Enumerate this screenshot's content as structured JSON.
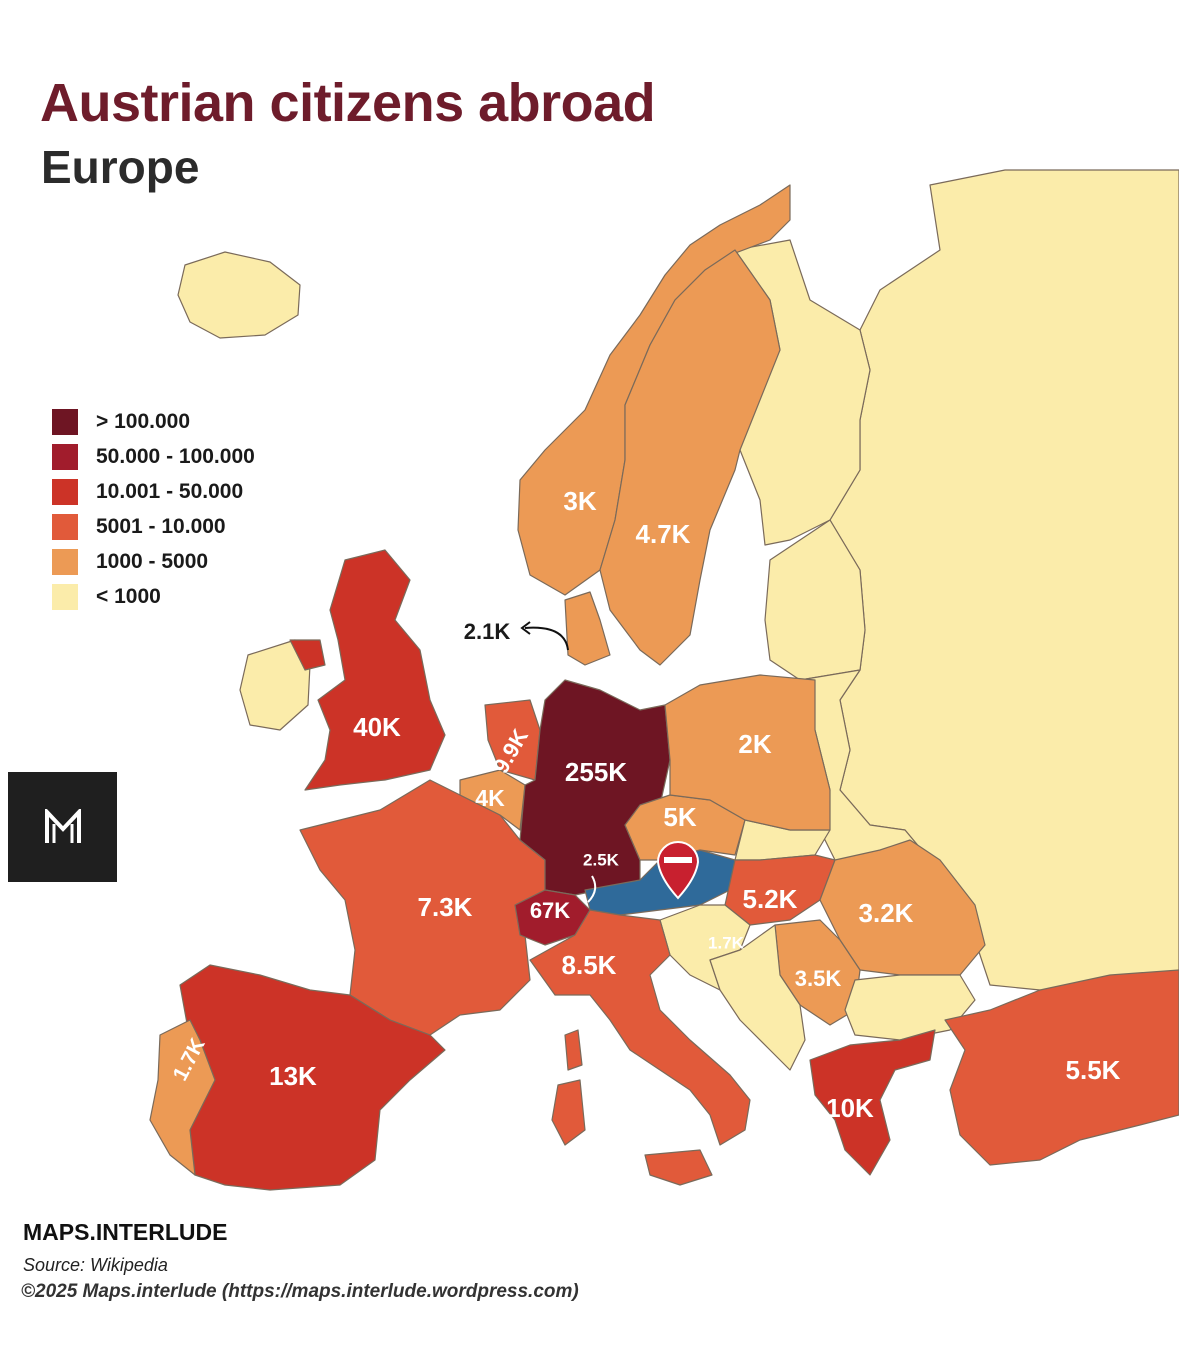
{
  "title": "Austrian citizens abroad",
  "subtitle": "Europe",
  "legend": [
    {
      "label": "> 100.000",
      "color": "#6e1523"
    },
    {
      "label": "50.000 - 100.000",
      "color": "#a11c2c"
    },
    {
      "label": "10.001 - 50.000",
      "color": "#cc3327"
    },
    {
      "label": "5001 - 10.000",
      "color": "#e15a3a"
    },
    {
      "label": "1000 - 5000",
      "color": "#ec9a55"
    },
    {
      "label": "< 1000",
      "color": "#fbecaa"
    }
  ],
  "home_country_color": "#2f6a9a",
  "sea_color": "#ffffff",
  "values": {
    "germany": "255K",
    "switzerland": "67K",
    "uk": "40K",
    "spain": "13K",
    "greece": "10K",
    "netherlands": "9.9K",
    "italy": "8.5K",
    "france": "7.3K",
    "turkey": "5.5K",
    "hungary": "5.2K",
    "czechia": "5K",
    "sweden": "4.7K",
    "belgium": "4K",
    "serbia": "3.5K",
    "romania": "3.2K",
    "norway": "3K",
    "liechtenstein": "2.5K",
    "denmark": "2.1K",
    "poland": "2K",
    "portugal": "1.7K",
    "croatia": "1.7K"
  },
  "icons": {
    "logo": "maps-interlude-m-logo",
    "pin": "austria-flag-pin-icon"
  },
  "footer": {
    "brand": "MAPS.INTERLUDE",
    "source": "Source: Wikipedia",
    "copyright": "©2025 Maps.interlude (https://maps.interlude.wordpress.com)"
  }
}
